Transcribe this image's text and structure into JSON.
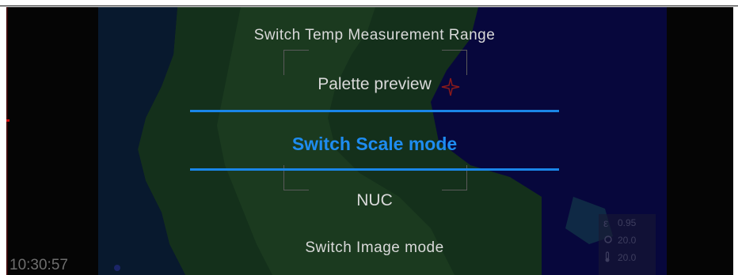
{
  "menu": {
    "items": [
      {
        "label": "Switch Temp Measurement Range"
      },
      {
        "label": "Palette preview"
      },
      {
        "label": "Switch Scale mode",
        "selected": true
      },
      {
        "label": "NUC"
      },
      {
        "label": "Switch Image mode"
      }
    ]
  },
  "status": {
    "time": "10:30:57"
  },
  "params": {
    "emissivity_symbol": "ε",
    "emissivity": "0.95",
    "ambient": "20.0",
    "reflected": "20.0"
  },
  "icons": [
    "emissivity-icon",
    "ambient-temp-icon",
    "thermometer-icon",
    "crosshair-icon"
  ],
  "colors": {
    "accent": "#1e8cf0",
    "menu_text": "#d9d9d9",
    "thermal_cold": "#0a0a5a",
    "thermal_mid": "#1e4d2a"
  }
}
